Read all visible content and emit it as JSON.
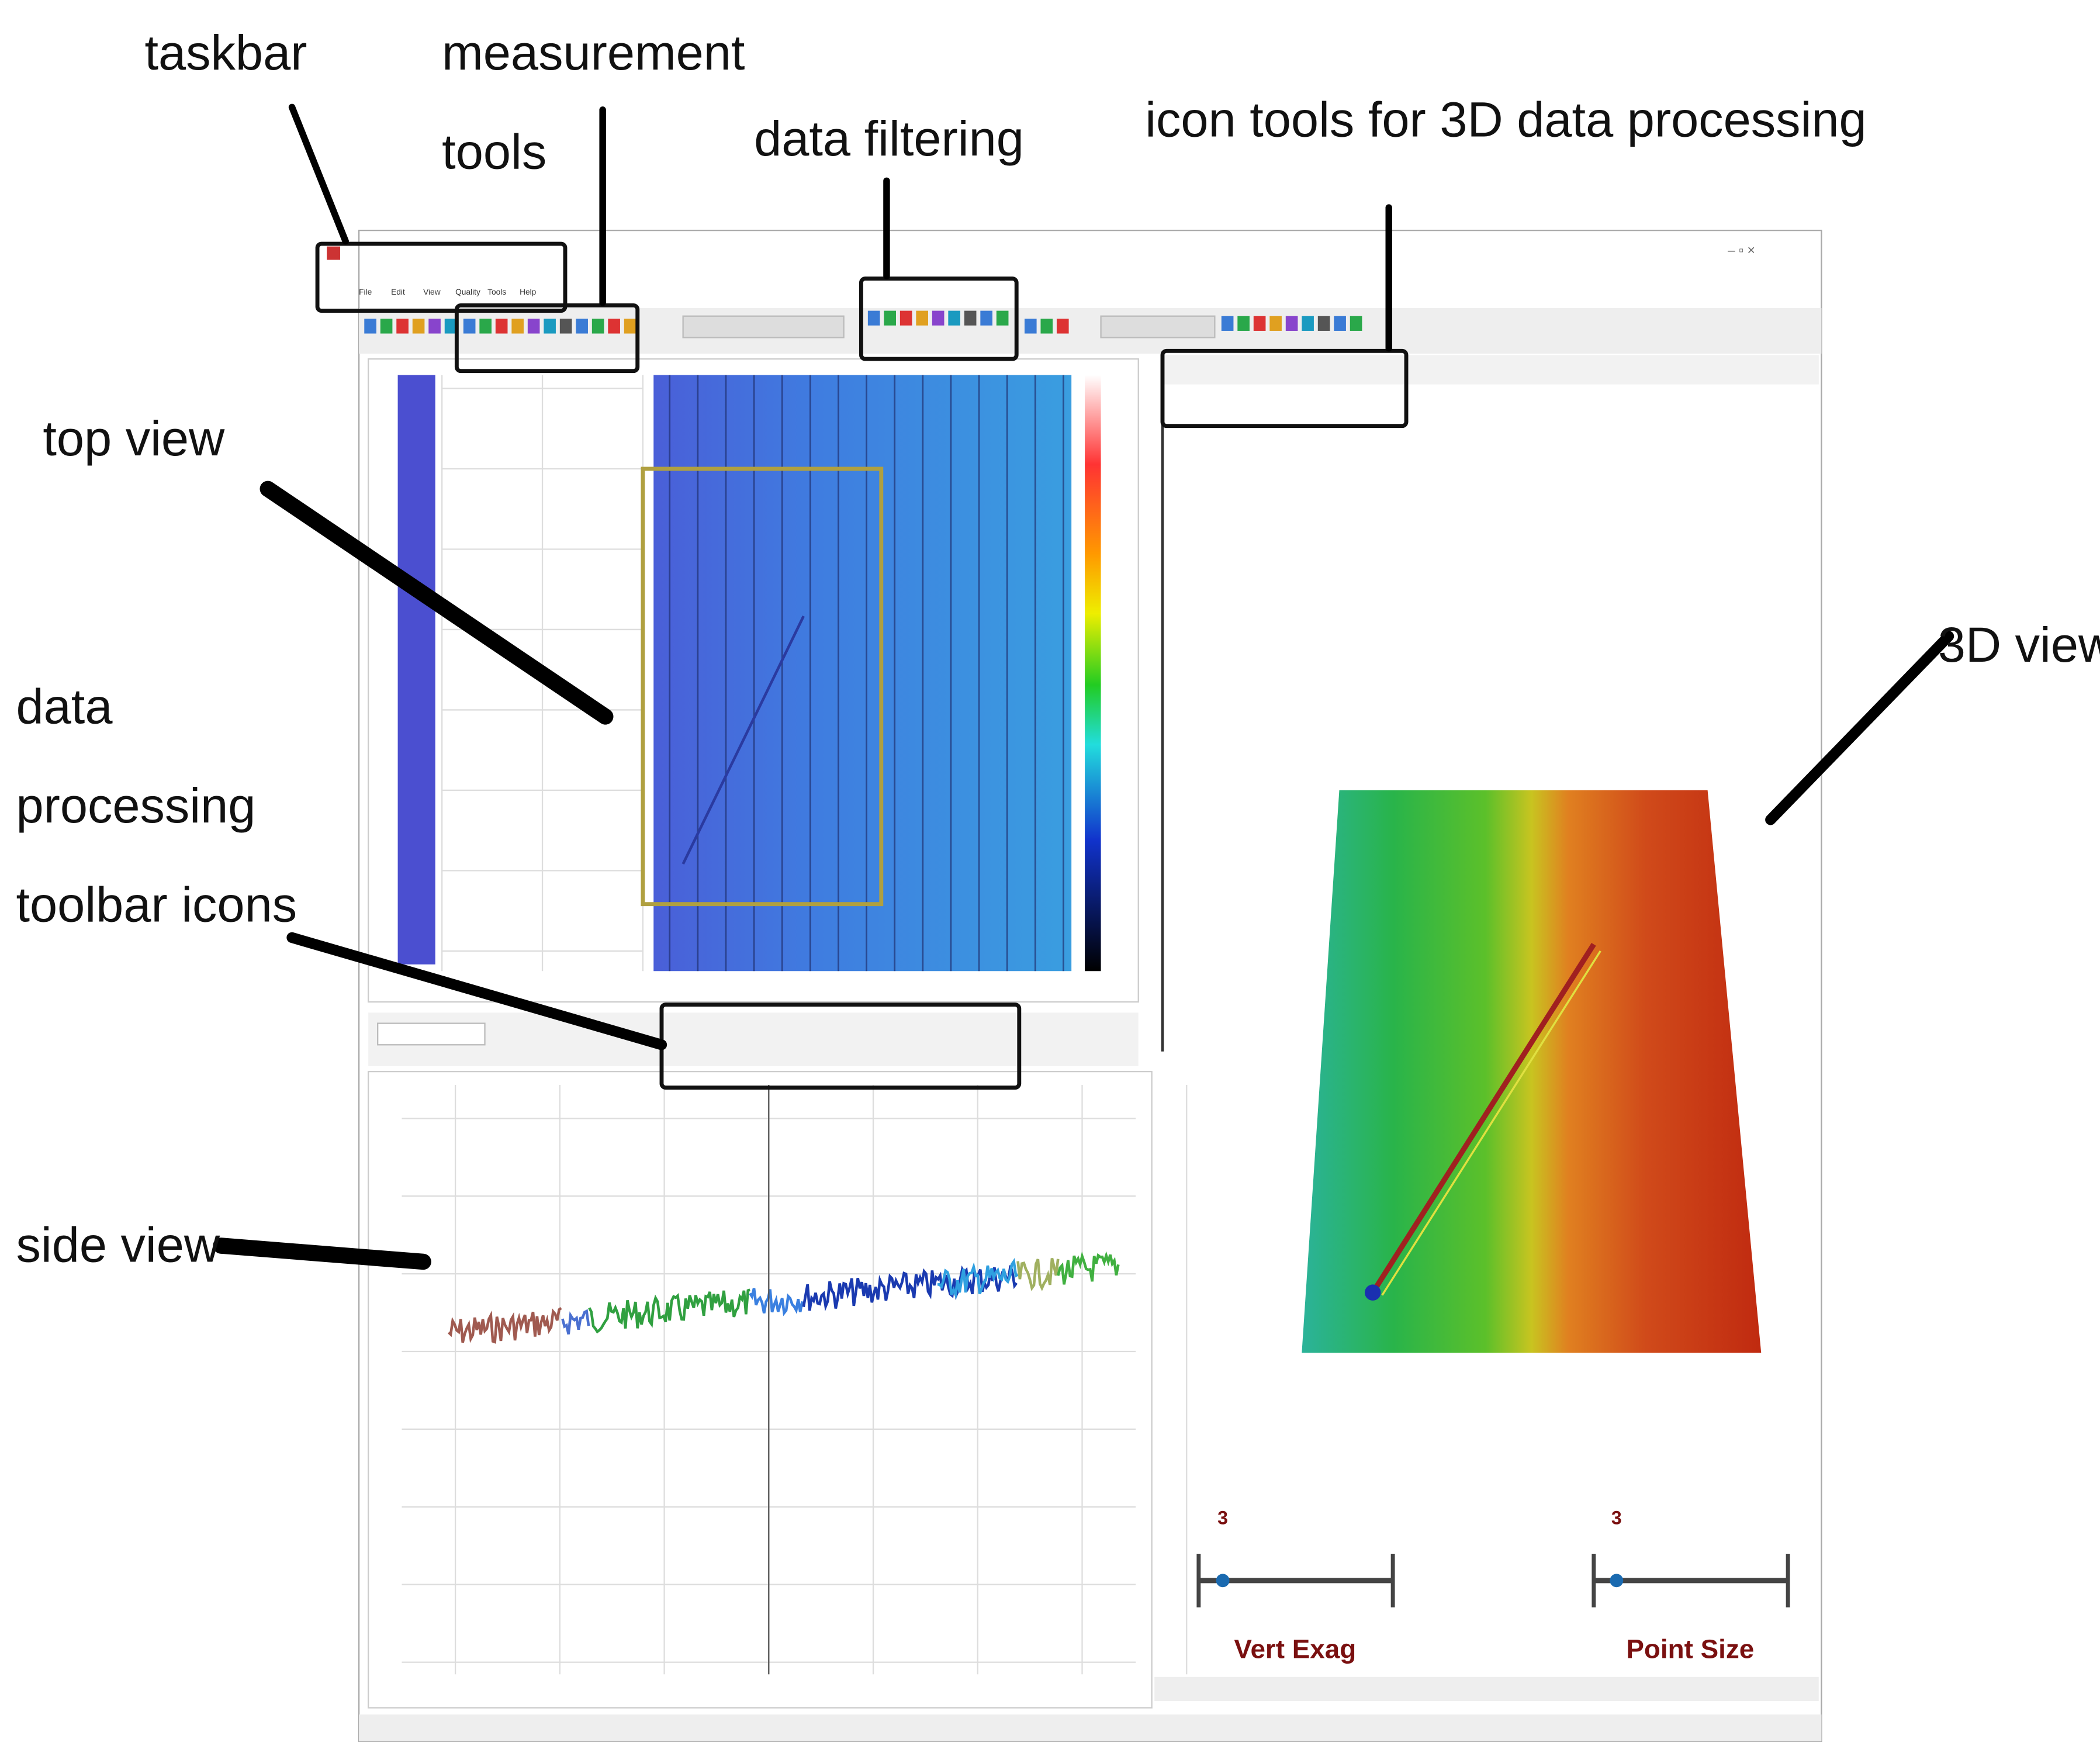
{
  "annotations": {
    "taskbar": "taskbar",
    "measurement_tools": [
      "measurement",
      "tools"
    ],
    "data_filtering": "data filtering",
    "icon_tools_3d": "icon tools for 3D data processing",
    "top_view": "top view",
    "data_processing_toolbar": [
      "data",
      "processing",
      "toolbar icons"
    ],
    "side_view": "side view",
    "view_3d": "3D view"
  },
  "menu": [
    "File",
    "Edit",
    "View",
    "Quality",
    "Tools",
    "Help"
  ],
  "sliders": [
    {
      "label": "Vert Exag",
      "value": 3
    },
    {
      "label": "Point Size",
      "value": 3
    }
  ]
}
